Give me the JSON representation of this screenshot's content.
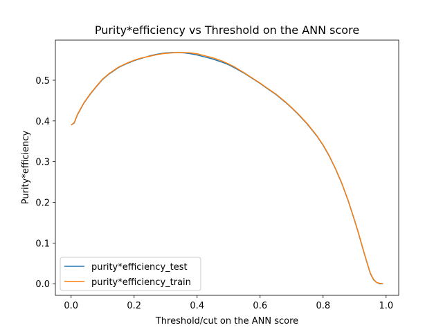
{
  "chart_data": {
    "type": "line",
    "title": "Purity*efficiency vs Threshold on the ANN score",
    "xlabel": "Threshold/cut on the ANN score",
    "ylabel": "Purity*efficiency",
    "xlim": [
      -0.05,
      1.04
    ],
    "ylim": [
      -0.0285,
      0.5985
    ],
    "xticks": [
      0.0,
      0.2,
      0.4,
      0.6,
      0.8,
      1.0
    ],
    "xtick_labels": [
      "0.0",
      "0.2",
      "0.4",
      "0.6",
      "0.8",
      "1.0"
    ],
    "yticks": [
      0.0,
      0.1,
      0.2,
      0.3,
      0.4,
      0.5
    ],
    "ytick_labels": [
      "0.0",
      "0.1",
      "0.2",
      "0.3",
      "0.4",
      "0.5"
    ],
    "grid": false,
    "legend_position": "lower-left",
    "colors": {
      "test": "#1f77b4",
      "train": "#ff7f0e"
    },
    "x": [
      0.0,
      0.01,
      0.02,
      0.04,
      0.06,
      0.08,
      0.1,
      0.12,
      0.15,
      0.18,
      0.2,
      0.22,
      0.25,
      0.28,
      0.3,
      0.32,
      0.34,
      0.36,
      0.38,
      0.4,
      0.42,
      0.45,
      0.48,
      0.5,
      0.52,
      0.55,
      0.58,
      0.6,
      0.62,
      0.65,
      0.68,
      0.7,
      0.72,
      0.75,
      0.78,
      0.8,
      0.82,
      0.84,
      0.86,
      0.88,
      0.9,
      0.91,
      0.92,
      0.93,
      0.94,
      0.95,
      0.96,
      0.97,
      0.98,
      0.99
    ],
    "series": [
      {
        "name": "purity*efficiency_test",
        "values": [
          0.39,
          0.395,
          0.415,
          0.443,
          0.465,
          0.484,
          0.502,
          0.515,
          0.531,
          0.542,
          0.548,
          0.553,
          0.56,
          0.565,
          0.567,
          0.568,
          0.568,
          0.567,
          0.565,
          0.562,
          0.558,
          0.552,
          0.544,
          0.538,
          0.53,
          0.517,
          0.502,
          0.492,
          0.481,
          0.465,
          0.446,
          0.432,
          0.417,
          0.392,
          0.363,
          0.34,
          0.313,
          0.281,
          0.245,
          0.203,
          0.155,
          0.13,
          0.103,
          0.076,
          0.05,
          0.025,
          0.01,
          0.003,
          0.0,
          0.0
        ]
      },
      {
        "name": "purity*efficiency_train",
        "values": [
          0.39,
          0.396,
          0.416,
          0.444,
          0.466,
          0.485,
          0.503,
          0.516,
          0.532,
          0.543,
          0.549,
          0.554,
          0.559,
          0.564,
          0.566,
          0.567,
          0.568,
          0.568,
          0.567,
          0.565,
          0.561,
          0.555,
          0.547,
          0.54,
          0.532,
          0.518,
          0.503,
          0.493,
          0.482,
          0.466,
          0.447,
          0.433,
          0.418,
          0.393,
          0.364,
          0.341,
          0.314,
          0.282,
          0.246,
          0.204,
          0.156,
          0.131,
          0.104,
          0.077,
          0.051,
          0.026,
          0.011,
          0.003,
          0.001,
          0.0
        ]
      }
    ]
  }
}
